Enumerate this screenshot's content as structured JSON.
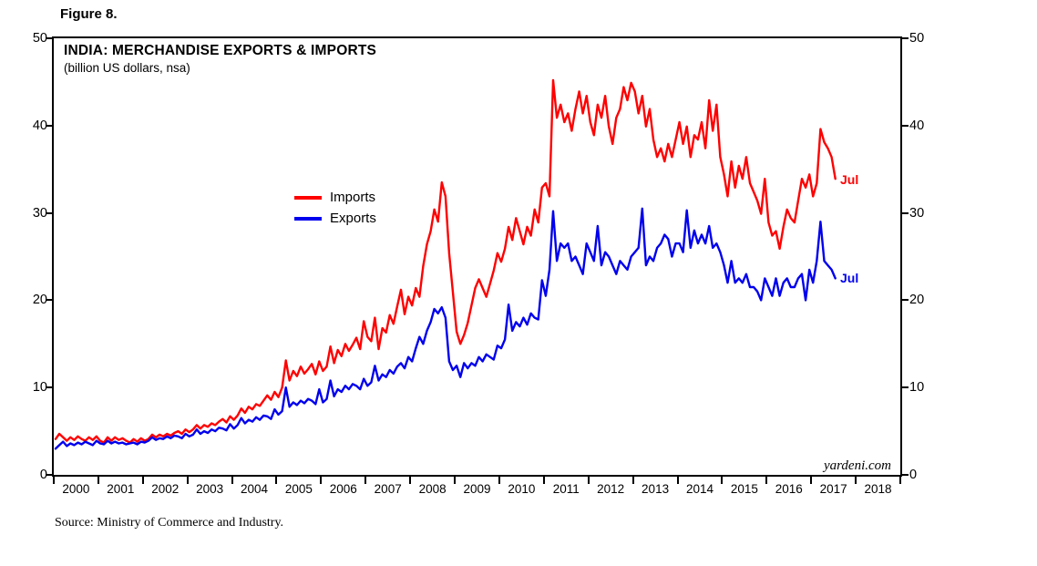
{
  "figure": {
    "label": "Figure 8.",
    "source": "Source: Ministry of Commerce and Industry."
  },
  "chart_data": {
    "type": "line",
    "title": "INDIA: MERCHANDISE EXPORTS & IMPORTS",
    "subtitle": "(billion US dollars, nsa)",
    "watermark": "yardeni.com",
    "frequency": "monthly",
    "x_start_year": 2000,
    "x_end_year": 2019,
    "ylim": [
      0,
      50
    ],
    "y_ticks": [
      0,
      10,
      20,
      30,
      40,
      50
    ],
    "x_tick_years": [
      2000,
      2001,
      2002,
      2003,
      2004,
      2005,
      2006,
      2007,
      2008,
      2009,
      2010,
      2011,
      2012,
      2013,
      2014,
      2015,
      2016,
      2017,
      2018
    ],
    "end_label": "Jul",
    "grid": false,
    "legend_position": "inside-left",
    "series": [
      {
        "name": "Imports",
        "color": "#ff0000",
        "values": [
          4.1,
          4.7,
          4.3,
          3.9,
          4.3,
          4.0,
          4.4,
          4.1,
          3.9,
          4.3,
          4.0,
          4.4,
          3.9,
          3.7,
          4.3,
          3.9,
          4.3,
          4.0,
          4.2,
          3.9,
          3.7,
          4.1,
          3.8,
          4.2,
          3.9,
          4.1,
          4.6,
          4.3,
          4.6,
          4.4,
          4.7,
          4.5,
          4.8,
          5.0,
          4.7,
          5.2,
          4.9,
          5.2,
          5.7,
          5.3,
          5.7,
          5.5,
          5.9,
          5.7,
          6.1,
          6.4,
          6.0,
          6.7,
          6.3,
          6.8,
          7.6,
          7.1,
          7.8,
          7.5,
          8.1,
          7.9,
          8.5,
          9.1,
          8.6,
          9.5,
          8.9,
          10.0,
          13.1,
          10.8,
          11.9,
          11.3,
          12.4,
          11.6,
          12.1,
          12.7,
          11.5,
          13.0,
          11.9,
          12.4,
          14.7,
          12.8,
          14.3,
          13.6,
          15.0,
          14.2,
          14.9,
          15.7,
          14.4,
          17.6,
          15.8,
          15.3,
          18.0,
          14.4,
          16.8,
          16.3,
          18.3,
          17.3,
          19.3,
          21.2,
          18.4,
          20.4,
          19.4,
          21.4,
          20.4,
          23.9,
          26.4,
          27.9,
          30.4,
          29.0,
          33.5,
          31.9,
          25.4,
          20.9,
          16.4,
          15.0,
          16.0,
          17.4,
          19.4,
          21.4,
          22.4,
          21.4,
          20.4,
          21.9,
          23.4,
          25.4,
          24.4,
          25.9,
          28.4,
          26.9,
          29.4,
          27.9,
          26.4,
          28.4,
          27.4,
          30.4,
          28.9,
          32.9,
          33.4,
          31.9,
          45.2,
          40.9,
          42.4,
          40.4,
          41.4,
          39.4,
          41.9,
          43.9,
          41.4,
          43.4,
          40.4,
          38.9,
          42.4,
          40.9,
          43.4,
          39.9,
          37.9,
          40.9,
          41.9,
          44.4,
          42.9,
          44.9,
          43.9,
          41.4,
          43.4,
          39.9,
          41.9,
          38.4,
          36.4,
          37.4,
          35.9,
          37.9,
          36.4,
          38.4,
          40.4,
          37.9,
          39.9,
          36.4,
          38.9,
          38.4,
          40.4,
          37.4,
          42.9,
          39.4,
          42.4,
          36.4,
          34.4,
          31.9,
          35.9,
          32.9,
          35.4,
          33.9,
          36.4,
          33.4,
          32.4,
          31.4,
          29.9,
          33.9,
          28.9,
          27.4,
          27.9,
          25.9,
          28.4,
          30.4,
          29.4,
          28.9,
          31.4,
          33.9,
          32.9,
          34.4,
          31.9,
          33.4,
          39.6,
          38.1,
          37.4,
          36.4,
          33.9
        ]
      },
      {
        "name": "Exports",
        "color": "#0000ee",
        "values": [
          3.0,
          3.4,
          3.8,
          3.3,
          3.6,
          3.4,
          3.7,
          3.5,
          3.8,
          3.6,
          3.4,
          3.9,
          3.6,
          3.5,
          3.9,
          3.6,
          3.8,
          3.6,
          3.7,
          3.5,
          3.6,
          3.7,
          3.5,
          3.8,
          3.7,
          3.9,
          4.3,
          4.0,
          4.2,
          4.1,
          4.4,
          4.2,
          4.5,
          4.4,
          4.2,
          4.7,
          4.4,
          4.6,
          5.2,
          4.7,
          5.0,
          4.8,
          5.2,
          5.0,
          5.4,
          5.3,
          5.1,
          5.8,
          5.3,
          5.7,
          6.5,
          5.9,
          6.3,
          6.1,
          6.6,
          6.3,
          6.8,
          6.7,
          6.4,
          7.5,
          6.9,
          7.3,
          10.0,
          7.8,
          8.3,
          8.0,
          8.5,
          8.2,
          8.7,
          8.5,
          8.1,
          9.8,
          8.3,
          8.7,
          10.8,
          9.0,
          9.8,
          9.5,
          10.2,
          9.8,
          10.4,
          10.2,
          9.8,
          11.0,
          10.2,
          10.6,
          12.5,
          10.8,
          11.5,
          11.2,
          12.0,
          11.6,
          12.4,
          12.8,
          12.2,
          13.5,
          13.0,
          14.5,
          15.8,
          15.0,
          16.5,
          17.5,
          19.0,
          18.5,
          19.2,
          18.0,
          13.0,
          12.0,
          12.5,
          11.2,
          12.8,
          12.2,
          12.8,
          12.5,
          13.5,
          13.0,
          13.8,
          13.5,
          13.2,
          14.8,
          14.5,
          15.5,
          19.5,
          16.5,
          17.5,
          17.0,
          18.0,
          17.2,
          18.5,
          18.0,
          17.8,
          22.3,
          20.5,
          23.5,
          30.2,
          24.5,
          26.5,
          26.0,
          26.5,
          24.5,
          25.0,
          24.0,
          23.0,
          26.5,
          25.5,
          24.5,
          28.5,
          24.0,
          25.5,
          25.0,
          24.0,
          23.0,
          24.5,
          24.0,
          23.5,
          25.0,
          25.5,
          26.0,
          30.5,
          24.0,
          25.0,
          24.5,
          26.0,
          26.5,
          27.5,
          27.0,
          25.0,
          26.5,
          26.5,
          25.5,
          30.3,
          26.0,
          28.0,
          26.5,
          27.5,
          26.5,
          28.5,
          26.0,
          26.5,
          25.5,
          24.0,
          22.0,
          24.5,
          22.0,
          22.5,
          22.0,
          23.0,
          21.5,
          21.5,
          21.0,
          20.0,
          22.5,
          21.5,
          20.5,
          22.5,
          20.5,
          22.0,
          22.5,
          21.5,
          21.5,
          22.5,
          23.0,
          20.0,
          23.5,
          22.0,
          24.5,
          29.0,
          24.5,
          24.0,
          23.5,
          22.5
        ]
      }
    ]
  }
}
